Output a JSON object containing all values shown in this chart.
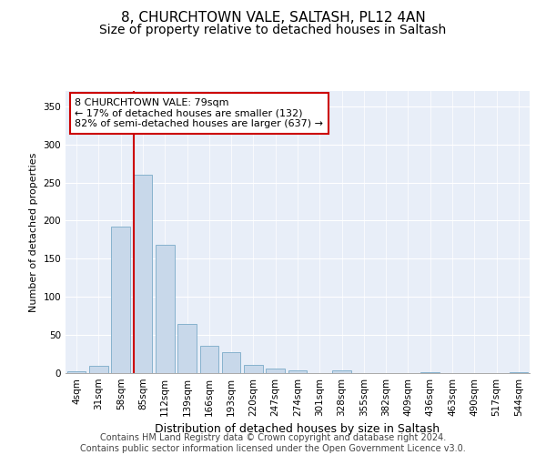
{
  "title1": "8, CHURCHTOWN VALE, SALTASH, PL12 4AN",
  "title2": "Size of property relative to detached houses in Saltash",
  "xlabel": "Distribution of detached houses by size in Saltash",
  "ylabel": "Number of detached properties",
  "bar_color": "#c8d8ea",
  "bar_edge_color": "#7aaac8",
  "vline_color": "#cc0000",
  "vline_x_index": 3,
  "annotation_text": "8 CHURCHTOWN VALE: 79sqm\n← 17% of detached houses are smaller (132)\n82% of semi-detached houses are larger (637) →",
  "annotation_box_color": "#ffffff",
  "annotation_box_edge": "#cc0000",
  "categories": [
    "4sqm",
    "31sqm",
    "58sqm",
    "85sqm",
    "112sqm",
    "139sqm",
    "166sqm",
    "193sqm",
    "220sqm",
    "247sqm",
    "274sqm",
    "301sqm",
    "328sqm",
    "355sqm",
    "382sqm",
    "409sqm",
    "436sqm",
    "463sqm",
    "490sqm",
    "517sqm",
    "544sqm"
  ],
  "bar_heights": [
    2,
    10,
    192,
    260,
    168,
    65,
    36,
    28,
    11,
    6,
    4,
    0,
    3,
    0,
    0,
    0,
    1,
    0,
    0,
    0,
    1
  ],
  "ylim": [
    0,
    370
  ],
  "yticks": [
    0,
    50,
    100,
    150,
    200,
    250,
    300,
    350
  ],
  "background_color": "#e8eef8",
  "grid_color": "#ffffff",
  "footer_text": "Contains HM Land Registry data © Crown copyright and database right 2024.\nContains public sector information licensed under the Open Government Licence v3.0.",
  "title_fontsize": 11,
  "subtitle_fontsize": 10,
  "ylabel_fontsize": 8,
  "xlabel_fontsize": 9,
  "tick_fontsize": 7.5,
  "footer_fontsize": 7,
  "annot_fontsize": 8
}
